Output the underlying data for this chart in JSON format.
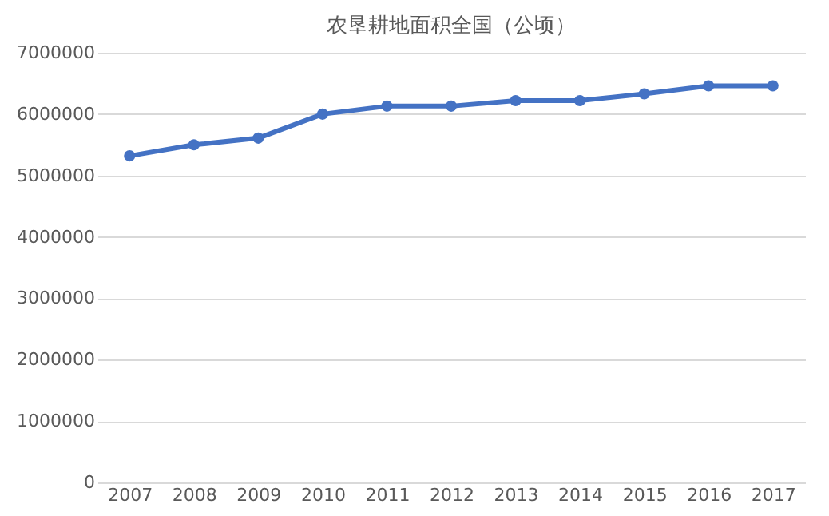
{
  "chart_data": {
    "type": "line",
    "title": "农垦耕地面积全国（公顷）",
    "categories": [
      "2007",
      "2008",
      "2009",
      "2010",
      "2011",
      "2012",
      "2013",
      "2014",
      "2015",
      "2016",
      "2017"
    ],
    "series": [
      {
        "color": "#4472c4",
        "values": [
          5320000,
          5500000,
          5610000,
          6000000,
          6130000,
          6130000,
          6220000,
          6220000,
          6330000,
          6460000,
          6460000
        ]
      }
    ],
    "ylim": [
      0,
      7000000
    ],
    "yticks": [
      0,
      1000000,
      2000000,
      3000000,
      4000000,
      5000000,
      6000000,
      7000000
    ],
    "grid": "y",
    "marker": "circle",
    "line_style": "solid"
  }
}
